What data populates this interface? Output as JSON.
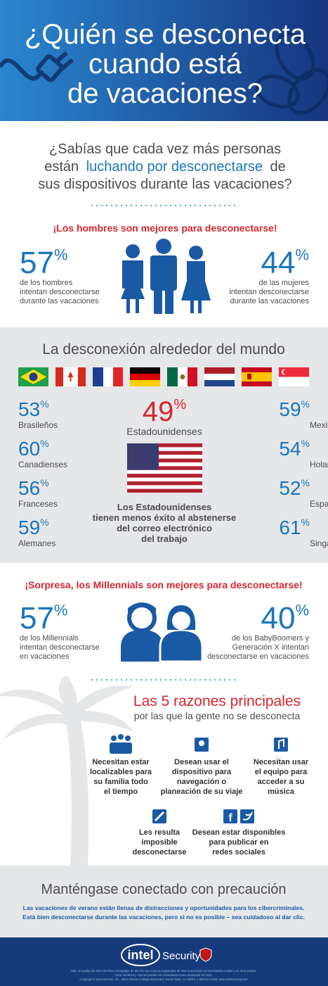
{
  "percent_sign": "%",
  "header": {
    "title_lines": [
      "¿Quién se desconecta",
      "cuando está",
      "de vacaciones?"
    ]
  },
  "intro": {
    "line1": "¿Sabías que cada vez más personas",
    "line2_start": "están",
    "line2_highlight": "luchando por desconectarse",
    "line2_end": "de",
    "line3": "sus dispositivos durante las vacaciones?"
  },
  "gender": {
    "heading": "¡Los hombres son mejores para desconectarse!",
    "men": {
      "value": 57,
      "label_lines": [
        "de los hombres",
        "intentan desconectarse",
        "durante las vacaciones"
      ]
    },
    "women": {
      "value": 44,
      "label_lines": [
        "de las mujeres",
        "intentan desconectarse",
        "durante las vacaciones"
      ]
    }
  },
  "world": {
    "title": "La desconexión alrededor del mundo",
    "left": [
      {
        "value": 53,
        "label": "Brasileños"
      },
      {
        "value": 60,
        "label": "Canadienses"
      },
      {
        "value": 56,
        "label": "Franceses"
      },
      {
        "value": 59,
        "label": "Alemanes"
      }
    ],
    "right": [
      {
        "value": 59,
        "label": "Mexicanos"
      },
      {
        "value": 54,
        "label": "Holandeses"
      },
      {
        "value": 52,
        "label": "Españoles"
      },
      {
        "value": 61,
        "label": "Singapurenses"
      }
    ],
    "us": {
      "value": 49,
      "label": "Estadounidenses",
      "note_lines": [
        "Los Estadounidenses",
        "tienen menos éxito al abstenerse",
        "del correo electrónico",
        "del trabajo"
      ]
    }
  },
  "millennials": {
    "heading": "¡Sorpresa, los Millennials son mejores para desconectarse!",
    "millennials": {
      "value": 57,
      "label_lines": [
        "de los Millennials",
        "intentan desconectarse",
        "en vacaciones"
      ]
    },
    "others": {
      "value": 40,
      "label_lines": [
        "de los BabyBoomers y",
        "Generación X intentan",
        "desconectarse en vacaciones"
      ]
    }
  },
  "reasons": {
    "title": "Las 5 razones principales",
    "subtitle": "por las que la gente no se desconecta",
    "items": [
      {
        "lines": [
          "Necesitan estar",
          "localizables para",
          "su familia todo",
          "el tiempo"
        ]
      },
      {
        "lines": [
          "Desean usar el",
          "dispositivo para",
          "navegación o",
          "planeación de su viaje"
        ]
      },
      {
        "lines": [
          "Necesitan usar",
          "el equipo para",
          "acceder a su",
          "música"
        ]
      },
      {
        "lines": [
          "Les resulta",
          "imposible",
          "desconectarse"
        ]
      },
      {
        "lines": [
          "Desean estar disponibles",
          "para publicar en",
          "redes sociales"
        ]
      }
    ]
  },
  "closing": {
    "title": "Manténgase conectado con precaución",
    "lines": [
      "Las vacaciones de verano están llenas de distracciones y oportunidades para los cibercriminales.",
      "Está bien desconectarse durante las vacaciones, pero si no es posible – sea cuidadoso al dar clic."
    ]
  },
  "footer": {
    "brand": "intel",
    "product": "Security",
    "legal_lines": [
      "Intel, el logotipo de Intel, McAfee y el logotipo de McAfee son marcas registradas de Intel Corporation en los Estados Unidos y en otros países.",
      "Otros nombres y marcas pueden ser reclamados como propiedad de otros.",
      "Copyright © 2016 McAfee, Inc., 2821 Mission College Boulevard, Santa Clara, CA 95054, 1.888.847.8766, www.intelsecurity.com"
    ]
  }
}
